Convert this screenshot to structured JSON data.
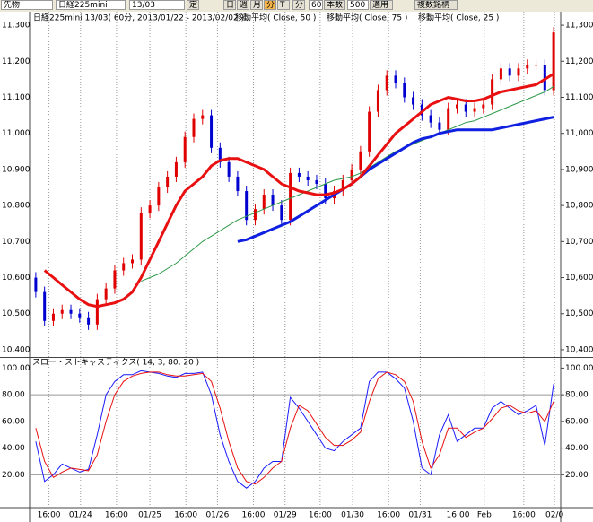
{
  "toolbar": {
    "items": [
      "先物",
      "日経225mini",
      "13/03",
      "定",
      "日",
      "週",
      "月",
      "分",
      "T",
      "分",
      "60",
      "本数",
      "500",
      "適用",
      "複数銘柄"
    ]
  },
  "chart_data": [
    {
      "type": "candlestick",
      "title": "日経225mini 13/03( 60分, 2013/01/22 - 2013/02/02 )",
      "up_color": "#e00000",
      "down_color": "#0000d0",
      "ohlc": {
        "open": [
          10600,
          10560,
          10480,
          10500,
          10510,
          10500,
          10490,
          10470,
          10540,
          10570,
          10620,
          10640,
          10650,
          10780,
          10800,
          10850,
          10880,
          10920,
          10990,
          11040,
          11050,
          10960,
          10920,
          10880,
          10840,
          10760,
          10790,
          10830,
          10800,
          10760,
          10890,
          10880,
          10870,
          10860,
          10820,
          10840,
          10870,
          10900,
          10950,
          11060,
          11120,
          11160,
          11140,
          11100,
          11080,
          11050,
          11030,
          11010,
          11070,
          11080,
          11060,
          11070,
          11080,
          11150,
          11180,
          11160,
          11180,
          11190,
          11190,
          11120
        ],
        "high": [
          10615,
          10575,
          10515,
          10525,
          10525,
          10515,
          10505,
          10555,
          10585,
          10635,
          10655,
          10665,
          10795,
          10815,
          10865,
          10895,
          10935,
          11005,
          11055,
          11065,
          11065,
          10975,
          10935,
          10895,
          10855,
          10805,
          10845,
          10845,
          10815,
          10905,
          10905,
          10895,
          10885,
          10875,
          10855,
          10885,
          10915,
          10965,
          11075,
          11135,
          11175,
          11175,
          11155,
          11115,
          11095,
          11065,
          11045,
          11085,
          11095,
          11095,
          11085,
          11095,
          11165,
          11195,
          11195,
          11195,
          11205,
          11205,
          11205,
          11295
        ],
        "low": [
          10545,
          10465,
          10465,
          10485,
          10485,
          10475,
          10455,
          10455,
          10525,
          10555,
          10605,
          10625,
          10635,
          10765,
          10785,
          10835,
          10865,
          10905,
          10975,
          11025,
          10945,
          10905,
          10865,
          10825,
          10745,
          10745,
          10775,
          10785,
          10745,
          10745,
          10865,
          10855,
          10845,
          10805,
          10805,
          10825,
          10855,
          10885,
          10935,
          11045,
          11105,
          11125,
          11085,
          11065,
          11035,
          11015,
          10995,
          10995,
          11055,
          11045,
          11045,
          11055,
          11065,
          11135,
          11145,
          11145,
          11165,
          11175,
          11105,
          11105
        ],
        "close": [
          10560,
          10480,
          10500,
          10510,
          10500,
          10490,
          10470,
          10540,
          10570,
          10620,
          10640,
          10650,
          10780,
          10800,
          10850,
          10880,
          10920,
          10990,
          11040,
          11050,
          10960,
          10920,
          10880,
          10840,
          10760,
          10790,
          10830,
          10800,
          10760,
          10890,
          10880,
          10870,
          10860,
          10820,
          10840,
          10870,
          10900,
          10950,
          11060,
          11120,
          11160,
          11140,
          11100,
          11080,
          11050,
          11030,
          11010,
          11070,
          11080,
          11060,
          11070,
          11080,
          11150,
          11180,
          11160,
          11180,
          11190,
          11190,
          11120,
          11280
        ]
      },
      "series": [
        {
          "name": "移動平均( Close, 50 )",
          "color": "#2e9a4a",
          "width": 1,
          "values": [
            null,
            null,
            null,
            null,
            null,
            null,
            null,
            null,
            null,
            null,
            null,
            null,
            10590,
            10600,
            10610,
            10625,
            10640,
            10660,
            10680,
            10700,
            10715,
            10730,
            10745,
            10760,
            10770,
            10780,
            10790,
            10800,
            10810,
            10820,
            10830,
            10840,
            10850,
            10860,
            10870,
            10875,
            10880,
            10890,
            10905,
            10920,
            10935,
            10950,
            10960,
            10970,
            10980,
            10990,
            11000,
            11010,
            11020,
            11030,
            11035,
            11045,
            11055,
            11065,
            11075,
            11085,
            11095,
            11105,
            11115,
            11130
          ]
        },
        {
          "name": "移動平均( Close, 75 )",
          "color": "#1020e0",
          "width": 3,
          "values": [
            null,
            null,
            null,
            null,
            null,
            null,
            null,
            null,
            null,
            null,
            null,
            null,
            null,
            null,
            null,
            null,
            null,
            null,
            null,
            null,
            null,
            null,
            null,
            10700,
            10705,
            10715,
            10725,
            10735,
            10745,
            10755,
            10770,
            10785,
            10800,
            10815,
            10830,
            10845,
            10860,
            10880,
            10900,
            10915,
            10930,
            10945,
            10960,
            10975,
            10985,
            10990,
            11000,
            11005,
            11010,
            11010,
            11010,
            11010,
            11010,
            11015,
            11020,
            11025,
            11030,
            11035,
            11040,
            11045
          ]
        },
        {
          "name": "移動平均( Close, 25 )",
          "color": "#e81010",
          "width": 3,
          "values": [
            null,
            10620,
            10600,
            10580,
            10560,
            10540,
            10525,
            10520,
            10525,
            10530,
            10540,
            10560,
            10600,
            10650,
            10700,
            10750,
            10800,
            10840,
            10860,
            10880,
            10910,
            10925,
            10930,
            10930,
            10920,
            10910,
            10900,
            10880,
            10860,
            10850,
            10840,
            10835,
            10830,
            10830,
            10835,
            10845,
            10860,
            10880,
            10910,
            10940,
            10970,
            11000,
            11020,
            11040,
            11060,
            11080,
            11090,
            11100,
            11095,
            11090,
            11090,
            11095,
            11105,
            11115,
            11120,
            11125,
            11130,
            11135,
            11150,
            11165
          ]
        }
      ],
      "ylim": [
        10380,
        11335
      ],
      "yticks": [
        {
          "value": 10400,
          "label": "10,400"
        },
        {
          "value": 10500,
          "label": "10,500"
        },
        {
          "value": 10600,
          "label": "10,600"
        },
        {
          "value": 10700,
          "label": "10,700"
        },
        {
          "value": 10800,
          "label": "10,800"
        },
        {
          "value": 10900,
          "label": "10,900"
        },
        {
          "value": 11000,
          "label": "11,000"
        },
        {
          "value": 11100,
          "label": "11,100"
        },
        {
          "value": 11200,
          "label": "11,200"
        },
        {
          "value": 11300,
          "label": "11,300"
        }
      ]
    },
    {
      "type": "line",
      "title": "スロー・ストキャスティクス( 14, 3, 80, 20 )",
      "series": [
        {
          "color": "#1a1aff",
          "values": [
            45,
            15,
            20,
            28,
            25,
            22,
            24,
            50,
            80,
            90,
            95,
            95,
            98,
            97,
            96,
            94,
            93,
            96,
            96,
            97,
            80,
            50,
            30,
            15,
            10,
            15,
            25,
            30,
            30,
            78,
            70,
            60,
            50,
            40,
            38,
            45,
            50,
            55,
            90,
            97,
            97,
            92,
            85,
            60,
            25,
            20,
            50,
            65,
            45,
            50,
            55,
            55,
            70,
            75,
            70,
            65,
            68,
            72,
            42,
            88
          ]
        },
        {
          "color": "#e81010",
          "values": [
            55,
            30,
            18,
            22,
            25,
            24,
            23,
            35,
            60,
            80,
            90,
            94,
            96,
            97,
            97,
            95,
            94,
            94,
            95,
            96,
            90,
            70,
            45,
            25,
            15,
            13,
            18,
            25,
            30,
            55,
            72,
            68,
            58,
            48,
            42,
            42,
            46,
            52,
            75,
            92,
            97,
            95,
            90,
            75,
            45,
            25,
            35,
            55,
            55,
            48,
            52,
            55,
            62,
            70,
            72,
            68,
            66,
            68,
            60,
            75
          ]
        }
      ],
      "levels": [
        80,
        20
      ],
      "ylim": [
        -4,
        107
      ],
      "yticks": [
        {
          "value": 20,
          "label": "20.00"
        },
        {
          "value": 40,
          "label": "40.00"
        },
        {
          "value": 60,
          "label": "60.00"
        },
        {
          "value": 80,
          "label": "80.00"
        },
        {
          "value": 100,
          "label": "100.00"
        }
      ],
      "xticks": [
        {
          "value": 1.5,
          "label": "16:00"
        },
        {
          "value": 5.1,
          "label": "01/24"
        },
        {
          "value": 9.2,
          "label": "16:00"
        },
        {
          "value": 13,
          "label": "01/25"
        },
        {
          "value": 17.1,
          "label": "16:00"
        },
        {
          "value": 20.7,
          "label": "01/26"
        },
        {
          "value": 24.8,
          "label": "16:00"
        },
        {
          "value": 28.4,
          "label": "01/29"
        },
        {
          "value": 32.4,
          "label": "16:00"
        },
        {
          "value": 36.1,
          "label": "01/30"
        },
        {
          "value": 40.2,
          "label": "16:00"
        },
        {
          "value": 43.8,
          "label": "01/31"
        },
        {
          "value": 48.1,
          "label": "16:00"
        },
        {
          "value": 51.1,
          "label": "Feb"
        },
        {
          "value": 55.6,
          "label": "16:00"
        },
        {
          "value": 59.1,
          "label": "02/0"
        }
      ]
    }
  ]
}
